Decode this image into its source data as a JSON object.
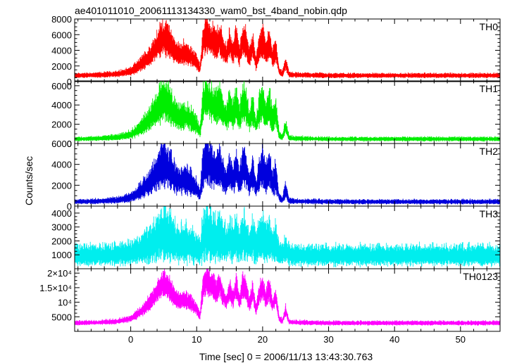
{
  "chart_data": {
    "type": "line",
    "title": "ae401011010_20061113134330_wam0_bst_4band_nobin.qdp",
    "xlabel": "Time [sec] 0 = 2006/11/13 13:43:30.763",
    "ylabel": "Counts/sec",
    "xlim": [
      -8.5,
      56
    ],
    "x_ticks": [
      {
        "value": 0,
        "label": "0"
      },
      {
        "value": 10,
        "label": "10"
      },
      {
        "value": 20,
        "label": "20"
      },
      {
        "value": 30,
        "label": "30"
      },
      {
        "value": 40,
        "label": "40"
      },
      {
        "value": 50,
        "label": "50"
      }
    ],
    "grid": false,
    "shape_envelope_x": [
      -8.5,
      -5,
      -2,
      0,
      1,
      2,
      3,
      3.5,
      4,
      4.5,
      5,
      5.5,
      6,
      6.5,
      7,
      7.5,
      8,
      9,
      10,
      10.5,
      11,
      11.5,
      12,
      12.5,
      13,
      13.5,
      14,
      14.5,
      15,
      15.5,
      16,
      16.5,
      17,
      17.5,
      18,
      18.5,
      19,
      19.5,
      20,
      20.5,
      21,
      21.5,
      22,
      22.5,
      23,
      23.5,
      24,
      25,
      30,
      40,
      50,
      56
    ],
    "shape_envelope": [
      0.12,
      0.13,
      0.15,
      0.2,
      0.28,
      0.38,
      0.5,
      0.6,
      0.68,
      0.78,
      0.85,
      0.8,
      0.72,
      0.62,
      0.55,
      0.52,
      0.55,
      0.5,
      0.38,
      0.25,
      0.8,
      0.9,
      0.82,
      0.78,
      0.7,
      0.82,
      0.62,
      0.5,
      0.72,
      0.55,
      0.78,
      0.5,
      0.8,
      0.72,
      0.45,
      0.7,
      0.35,
      0.65,
      0.78,
      0.55,
      0.75,
      0.45,
      0.6,
      0.2,
      0.15,
      0.35,
      0.14,
      0.13,
      0.12,
      0.12,
      0.12,
      0.12
    ],
    "panels": [
      {
        "label": "TH0",
        "color": "#ff0000",
        "ylim": [
          0,
          8000
        ],
        "baseline": 750,
        "peak": 6500,
        "noise": 0.32,
        "yticks": [
          {
            "value": 0,
            "label": "0"
          },
          {
            "value": 2000,
            "label": "2000"
          },
          {
            "value": 4000,
            "label": "4000"
          },
          {
            "value": 6000,
            "label": "6000"
          },
          {
            "value": 8000,
            "label": "8000"
          }
        ]
      },
      {
        "label": "TH1",
        "color": "#00ee00",
        "ylim": [
          0,
          6500
        ],
        "baseline": 450,
        "peak": 5200,
        "noise": 0.4,
        "yticks": [
          {
            "value": 0,
            "label": "0"
          },
          {
            "value": 2000,
            "label": "2000"
          },
          {
            "value": 4000,
            "label": "4000"
          },
          {
            "value": 6000,
            "label": "6000"
          }
        ]
      },
      {
        "label": "TH2",
        "color": "#0000dd",
        "ylim": [
          0,
          6000
        ],
        "baseline": 400,
        "peak": 4600,
        "noise": 0.45,
        "yticks": [
          {
            "value": 0,
            "label": "0"
          },
          {
            "value": 2000,
            "label": "2000"
          },
          {
            "value": 4000,
            "label": "4000"
          },
          {
            "value": 6000,
            "label": "6000"
          }
        ]
      },
      {
        "label": "TH3",
        "color": "#00eeee",
        "ylim": [
          0,
          4500
        ],
        "baseline": 900,
        "peak": 2600,
        "noise": 0.65,
        "yticks": [
          {
            "value": 1000,
            "label": "1000"
          },
          {
            "value": 2000,
            "label": "2000"
          },
          {
            "value": 3000,
            "label": "3000"
          },
          {
            "value": 4000,
            "label": "4000"
          }
        ]
      },
      {
        "label": "TH0123",
        "color": "#ff00ff",
        "ylim": [
          0,
          21500
        ],
        "baseline": 2800,
        "peak": 19000,
        "noise": 0.22,
        "yticks": [
          {
            "value": 5000,
            "label": "5000"
          },
          {
            "value": 10000,
            "label": "10⁴"
          },
          {
            "value": 15000,
            "label": "1.5×10⁴"
          },
          {
            "value": 20000,
            "label": "2×10⁴"
          }
        ]
      }
    ]
  }
}
